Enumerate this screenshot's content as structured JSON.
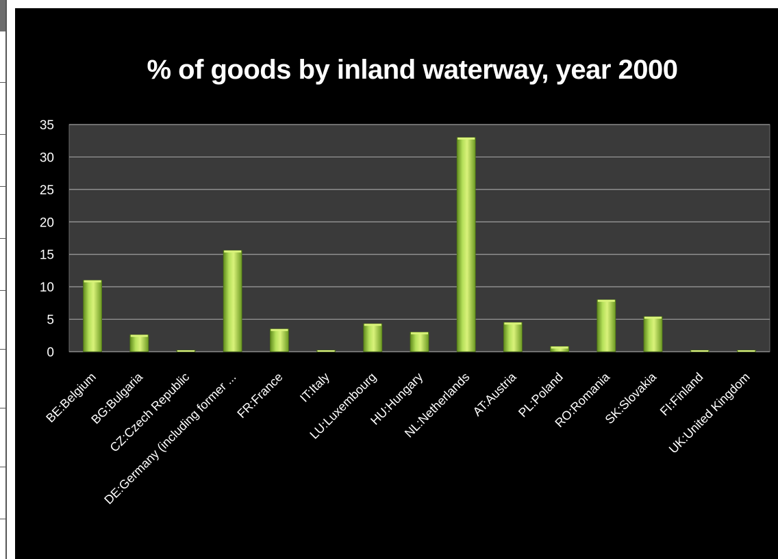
{
  "chart_data": {
    "type": "bar",
    "title": "% of goods by inland waterway,  year 2000",
    "xlabel": "",
    "ylabel": "",
    "ylim": [
      0,
      35
    ],
    "yticks": [
      0,
      5,
      10,
      15,
      20,
      25,
      30,
      35
    ],
    "grid": true,
    "legend": "none",
    "categories": [
      "BE:Belgium",
      "BG:Bulgaria",
      "CZ:Czech Republic",
      "DE:Germany (including  former ...",
      "FR:France",
      "IT:Italy",
      "LU:Luxembourg",
      "HU:Hungary",
      "NL:Netherlands",
      "AT:Austria",
      "PL:Poland",
      "RO:Romania",
      "SK:Slovakia",
      "FI:Finland",
      "UK:United Kingdom"
    ],
    "values": [
      11,
      2.6,
      0.2,
      15.6,
      3.5,
      0.2,
      4.3,
      3.0,
      33,
      4.5,
      0.8,
      8,
      5.4,
      0.2,
      0.2
    ],
    "colors": {
      "bar": "#9ccc3a",
      "bar_highlight": "#d9f27a",
      "bar_shadow": "#5f8a1c",
      "plot_background": "#3a3a3a",
      "gridline": "#a0a0a0",
      "panel_background": "#000000",
      "text": "#ffffff"
    }
  }
}
